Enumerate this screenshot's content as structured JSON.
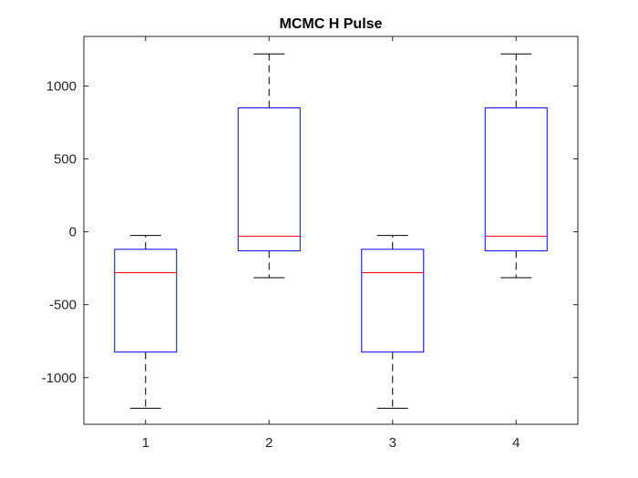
{
  "chart_data": {
    "type": "box",
    "title": "MCMC H Pulse",
    "xlabel": "",
    "ylabel": "",
    "categories": [
      "1",
      "2",
      "3",
      "4"
    ],
    "ylim": [
      -1320,
      1340
    ],
    "yticks": [
      -1000,
      -500,
      0,
      500,
      1000
    ],
    "yticklabels": [
      "-1000",
      "-500",
      "0",
      "500",
      "1000"
    ],
    "grid": false,
    "boxes": [
      {
        "category": "1",
        "whisker_low": -1210,
        "q1": -825,
        "median": -280,
        "q3": -120,
        "whisker_high": -25
      },
      {
        "category": "2",
        "whisker_low": -315,
        "q1": -130,
        "median": -30,
        "q3": 850,
        "whisker_high": 1220
      },
      {
        "category": "3",
        "whisker_low": -1210,
        "q1": -825,
        "median": -280,
        "q3": -120,
        "whisker_high": -25
      },
      {
        "category": "4",
        "whisker_low": -315,
        "q1": -130,
        "median": -30,
        "q3": 850,
        "whisker_high": 1220
      }
    ],
    "colors": {
      "box": "#0000ff",
      "median": "#ff0000",
      "whisker": "#000000",
      "axis": "#262626"
    }
  }
}
